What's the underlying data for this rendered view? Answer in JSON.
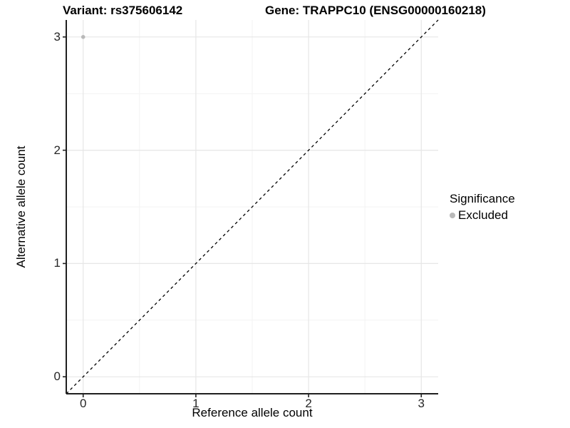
{
  "header": {
    "variant_title": "Variant: rs375606142",
    "gene_title": "Gene: TRAPPC10 (ENSG00000160218)"
  },
  "chart_data": {
    "type": "scatter",
    "titles": {
      "left": "Variant: rs375606142",
      "right": "Gene: TRAPPC10 (ENSG00000160218)"
    },
    "xlabel": "Reference allele count",
    "ylabel": "Alternative allele count",
    "xlim": [
      -0.15,
      3.15
    ],
    "ylim": [
      -0.15,
      3.15
    ],
    "x_ticks": [
      0,
      1,
      2,
      3
    ],
    "y_ticks": [
      0,
      1,
      2,
      3
    ],
    "x_minor_ticks": [
      0.5,
      1.5,
      2.5
    ],
    "y_minor_ticks": [
      0.5,
      1.5,
      2.5
    ],
    "grid": true,
    "points": [
      {
        "x": 0,
        "y": 3,
        "series": "Excluded"
      }
    ],
    "reference_line": {
      "kind": "identity",
      "equation": "y = x",
      "style": "dashed",
      "color": "#000000"
    },
    "legend": {
      "title": "Significance",
      "position": "right",
      "entries": [
        {
          "label": "Excluded",
          "color": "#b9b9b9"
        }
      ]
    },
    "style_colors": {
      "point": "#b9b9b9",
      "grid_major": "#e6e6e6",
      "grid_minor": "#f3f3f3",
      "axis_line": "#1f1f1f",
      "tick_label": "#262626",
      "background": "#ffffff"
    }
  }
}
